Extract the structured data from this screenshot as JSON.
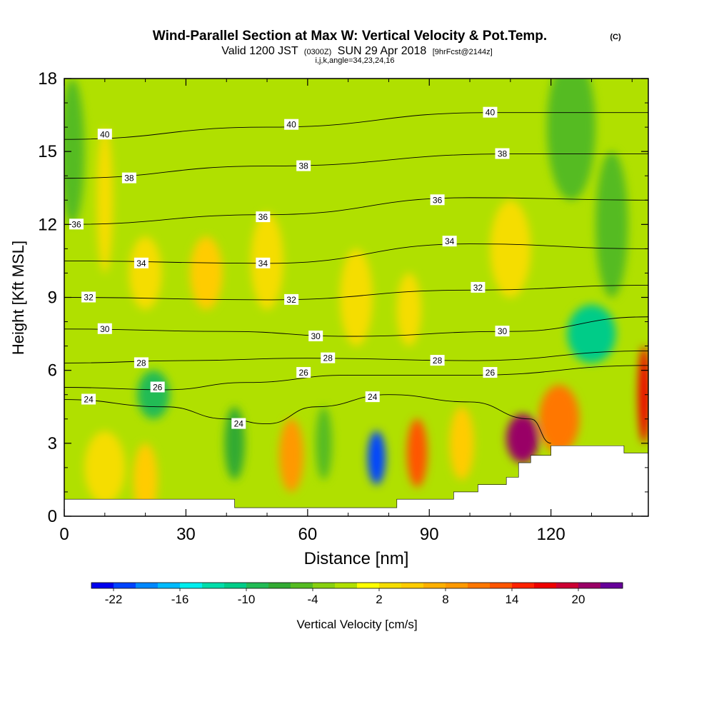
{
  "chart_data": {
    "type": "heatmap",
    "title": "Wind-Parallel Section at Max W: Vertical Velocity & Pot.Temp.",
    "title_unit": "(C)",
    "subtitle_main": "Valid 1200 JST",
    "subtitle_z": "(0300Z)",
    "subtitle_date": "SUN 29 Apr 2018",
    "subtitle_fcst": "[9hrFcst@2144z]",
    "subtitle_ijk": "i,j,k,angle=34,23,24,16",
    "xlabel": "Distance [nm]",
    "ylabel": "Height [Kft MSL]",
    "xlim": [
      0,
      144
    ],
    "ylim": [
      0,
      18
    ],
    "x_ticks": [
      "0",
      "30",
      "60",
      "90",
      "120"
    ],
    "x_tick_values": [
      0,
      30,
      60,
      90,
      120
    ],
    "y_ticks": [
      "0",
      "3",
      "6",
      "9",
      "12",
      "15",
      "18"
    ],
    "y_tick_values": [
      0,
      3,
      6,
      9,
      12,
      15,
      18
    ],
    "colorbar": {
      "label": "Vertical Velocity [cm/s]",
      "tick_labels": [
        "-22",
        "-16",
        "-10",
        "-4",
        "2",
        "8",
        "14",
        "20"
      ],
      "levels": [
        -24,
        -22,
        -20,
        -18,
        -16,
        -14,
        -12,
        -10,
        -8,
        -6,
        -4,
        -2,
        0,
        2,
        4,
        6,
        8,
        10,
        12,
        14,
        16,
        18,
        20,
        22,
        24
      ],
      "colors": [
        "#0000ee",
        "#0044ff",
        "#0088ff",
        "#00bbff",
        "#00eeee",
        "#00ddaa",
        "#00cc88",
        "#22bb55",
        "#33aa33",
        "#55bb22",
        "#88d010",
        "#b0e000",
        "#ffff00",
        "#f5dd00",
        "#ffcc00",
        "#ffb000",
        "#ff9900",
        "#ff7700",
        "#ff5500",
        "#ff2200",
        "#ee0000",
        "#cc0033",
        "#990066",
        "#660099"
      ]
    },
    "field": {
      "background_value": -2,
      "cells": [
        {
          "x": 2,
          "y": 15,
          "value": -5,
          "sx": 3,
          "sy": 3
        },
        {
          "x": 10,
          "y": 13,
          "value": 3,
          "sx": 2,
          "sy": 3
        },
        {
          "x": 20,
          "y": 10,
          "value": 3,
          "sx": 4,
          "sy": 1.5
        },
        {
          "x": 35,
          "y": 10,
          "value": 4,
          "sx": 4,
          "sy": 1.5
        },
        {
          "x": 50,
          "y": 10.5,
          "value": 3,
          "sx": 4,
          "sy": 2
        },
        {
          "x": 72,
          "y": 9,
          "value": 2,
          "sx": 4,
          "sy": 2
        },
        {
          "x": 85,
          "y": 8.5,
          "value": 2,
          "sx": 3,
          "sy": 1.5
        },
        {
          "x": 110,
          "y": 11,
          "value": 3,
          "sx": 5,
          "sy": 2
        },
        {
          "x": 125,
          "y": 16,
          "value": -5,
          "sx": 6,
          "sy": 3
        },
        {
          "x": 135,
          "y": 12,
          "value": -6,
          "sx": 4,
          "sy": 3
        },
        {
          "x": 130,
          "y": 7.5,
          "value": -11,
          "sx": 6,
          "sy": 1.2
        },
        {
          "x": 22,
          "y": 5,
          "value": -10,
          "sx": 4,
          "sy": 1
        },
        {
          "x": 10,
          "y": 2,
          "value": 2,
          "sx": 5,
          "sy": 1.5
        },
        {
          "x": 20,
          "y": 1.5,
          "value": 4,
          "sx": 3,
          "sy": 1.5
        },
        {
          "x": 42,
          "y": 3,
          "value": -8,
          "sx": 2.5,
          "sy": 1.5
        },
        {
          "x": 56,
          "y": 2.5,
          "value": 8,
          "sx": 3,
          "sy": 1.5
        },
        {
          "x": 64,
          "y": 3,
          "value": -6,
          "sx": 2,
          "sy": 1.5
        },
        {
          "x": 77,
          "y": 2.4,
          "value": -22,
          "sx": 2.2,
          "sy": 1.1
        },
        {
          "x": 87,
          "y": 2.6,
          "value": 12,
          "sx": 2.5,
          "sy": 1.4
        },
        {
          "x": 98,
          "y": 3,
          "value": 4,
          "sx": 3,
          "sy": 1.5
        },
        {
          "x": 113,
          "y": 3.2,
          "value": 20,
          "sx": 4,
          "sy": 1
        },
        {
          "x": 122,
          "y": 4,
          "value": 10,
          "sx": 5,
          "sy": 1.4
        },
        {
          "x": 143,
          "y": 5,
          "value": 16,
          "sx": 1.5,
          "sy": 2
        }
      ]
    },
    "terrain": [
      [
        0,
        0.7
      ],
      [
        42,
        0.7
      ],
      [
        42,
        0.35
      ],
      [
        82,
        0.35
      ],
      [
        82,
        0.7
      ],
      [
        96,
        0.7
      ],
      [
        96,
        1.0
      ],
      [
        102,
        1.0
      ],
      [
        102,
        1.3
      ],
      [
        109,
        1.3
      ],
      [
        109,
        1.6
      ],
      [
        112,
        1.6
      ],
      [
        112,
        2.2
      ],
      [
        115,
        2.2
      ],
      [
        115,
        2.5
      ],
      [
        120,
        2.5
      ],
      [
        120,
        2.9
      ],
      [
        138,
        2.9
      ],
      [
        138,
        2.6
      ],
      [
        144,
        2.6
      ]
    ],
    "theta_contours": [
      {
        "level": 24,
        "label": "24",
        "points": [
          [
            0,
            4.8
          ],
          [
            25,
            4.5
          ],
          [
            40,
            4.0
          ],
          [
            50,
            3.8
          ],
          [
            62,
            4.5
          ],
          [
            80,
            5.0
          ],
          [
            100,
            4.7
          ],
          [
            115,
            4.0
          ],
          [
            120,
            3.0
          ]
        ]
      },
      {
        "level": 26,
        "label": "26",
        "points": [
          [
            0,
            5.3
          ],
          [
            25,
            5.2
          ],
          [
            45,
            5.5
          ],
          [
            70,
            5.8
          ],
          [
            100,
            5.8
          ],
          [
            144,
            6.2
          ]
        ]
      },
      {
        "level": 28,
        "label": "28",
        "points": [
          [
            0,
            6.3
          ],
          [
            30,
            6.4
          ],
          [
            60,
            6.5
          ],
          [
            100,
            6.4
          ],
          [
            144,
            6.8
          ]
        ]
      },
      {
        "level": 30,
        "label": "30",
        "points": [
          [
            0,
            7.7
          ],
          [
            40,
            7.6
          ],
          [
            70,
            7.4
          ],
          [
            110,
            7.6
          ],
          [
            144,
            8.2
          ]
        ]
      },
      {
        "level": 32,
        "label": "32",
        "points": [
          [
            0,
            9.0
          ],
          [
            50,
            8.9
          ],
          [
            100,
            9.3
          ],
          [
            144,
            9.5
          ]
        ]
      },
      {
        "level": 34,
        "label": "34",
        "points": [
          [
            0,
            10.5
          ],
          [
            50,
            10.4
          ],
          [
            100,
            11.2
          ],
          [
            144,
            11.0
          ]
        ]
      },
      {
        "level": 36,
        "label": "36",
        "points": [
          [
            0,
            12.0
          ],
          [
            50,
            12.4
          ],
          [
            100,
            13.1
          ],
          [
            144,
            13.0
          ]
        ]
      },
      {
        "level": 38,
        "label": "38",
        "points": [
          [
            0,
            13.9
          ],
          [
            50,
            14.4
          ],
          [
            110,
            14.9
          ],
          [
            144,
            14.9
          ]
        ]
      },
      {
        "level": 40,
        "label": "40",
        "points": [
          [
            0,
            15.5
          ],
          [
            50,
            16.0
          ],
          [
            105,
            16.6
          ],
          [
            144,
            16.6
          ]
        ]
      }
    ],
    "contour_labels": [
      {
        "text": "40",
        "x": 10,
        "y": 15.7
      },
      {
        "text": "40",
        "x": 56,
        "y": 16.1
      },
      {
        "text": "40",
        "x": 105,
        "y": 16.6
      },
      {
        "text": "38",
        "x": 16,
        "y": 13.9
      },
      {
        "text": "38",
        "x": 59,
        "y": 14.4
      },
      {
        "text": "38",
        "x": 108,
        "y": 14.9
      },
      {
        "text": "36",
        "x": 3,
        "y": 12.0
      },
      {
        "text": "36",
        "x": 49,
        "y": 12.3
      },
      {
        "text": "36",
        "x": 92,
        "y": 13.0
      },
      {
        "text": "34",
        "x": 19,
        "y": 10.4
      },
      {
        "text": "34",
        "x": 49,
        "y": 10.4
      },
      {
        "text": "34",
        "x": 95,
        "y": 11.3
      },
      {
        "text": "32",
        "x": 6,
        "y": 9.0
      },
      {
        "text": "32",
        "x": 56,
        "y": 8.9
      },
      {
        "text": "32",
        "x": 102,
        "y": 9.4
      },
      {
        "text": "30",
        "x": 10,
        "y": 7.7
      },
      {
        "text": "30",
        "x": 62,
        "y": 7.4
      },
      {
        "text": "30",
        "x": 108,
        "y": 7.6
      },
      {
        "text": "28",
        "x": 19,
        "y": 6.3
      },
      {
        "text": "28",
        "x": 65,
        "y": 6.5
      },
      {
        "text": "28",
        "x": 92,
        "y": 6.4
      },
      {
        "text": "26",
        "x": 23,
        "y": 5.3
      },
      {
        "text": "26",
        "x": 59,
        "y": 5.9
      },
      {
        "text": "26",
        "x": 105,
        "y": 5.9
      },
      {
        "text": "24",
        "x": 6,
        "y": 4.8
      },
      {
        "text": "24",
        "x": 43,
        "y": 3.8
      },
      {
        "text": "24",
        "x": 76,
        "y": 4.9
      }
    ]
  }
}
